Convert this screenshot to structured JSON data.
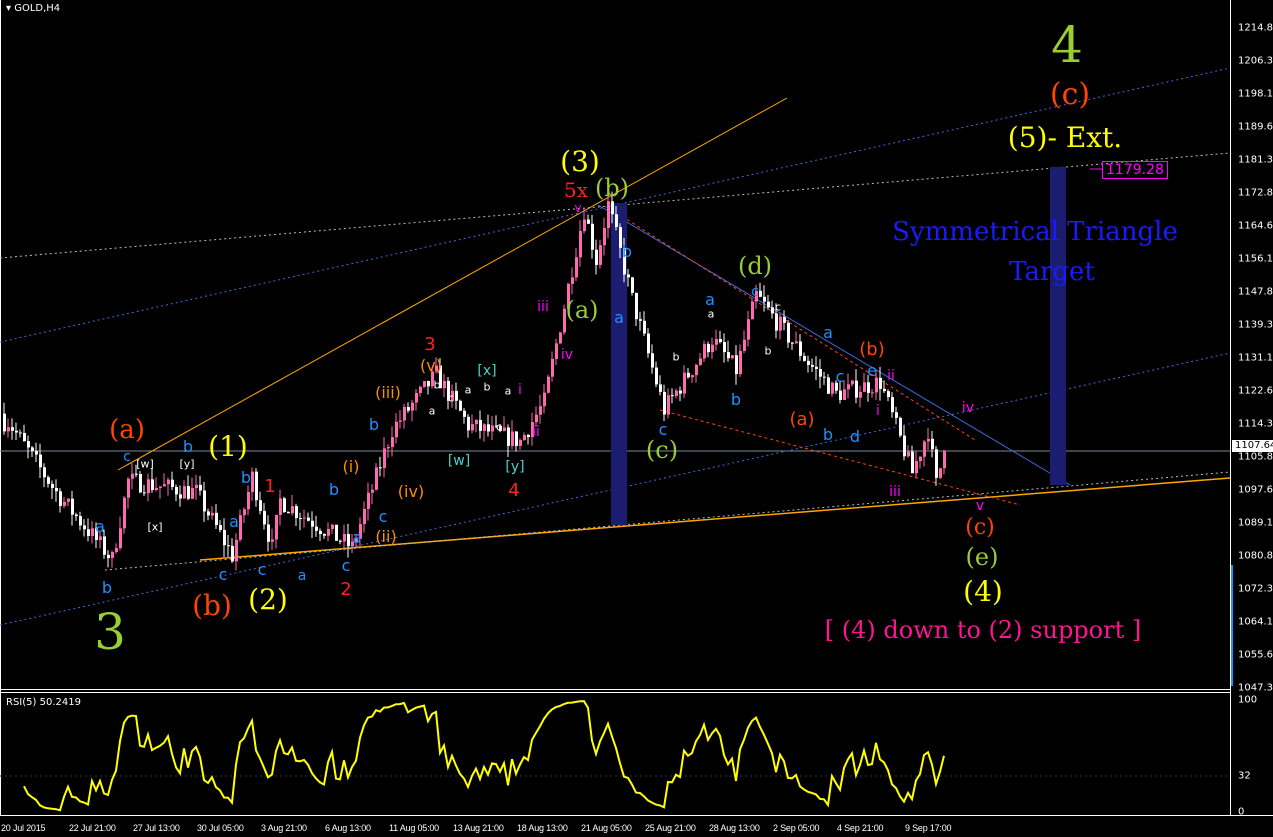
{
  "window": {
    "title": "GOLD,H4",
    "collapse_icon": "triangle-down-icon"
  },
  "price_axis": {
    "ticks": [
      "1214.87",
      "1206.37",
      "1198.12",
      "1189.62",
      "1181.37",
      "1172.87",
      "1164.62",
      "1156.12",
      "1147.87",
      "1139.37",
      "1131.12",
      "1122.62",
      "1114.37",
      "1105.87",
      "1097.62",
      "1089.12",
      "1080.87",
      "1072.37",
      "1064.12",
      "1055.62",
      "1047.37"
    ],
    "current_price": "1107.64"
  },
  "time_axis": {
    "ticks": [
      "20 Jul 2015",
      "22 Jul 21:00",
      "27 Jul 13:00",
      "30 Jul 05:00",
      "3 Aug 21:00",
      "6 Aug 13:00",
      "11 Aug 05:00",
      "13 Aug 21:00",
      "18 Aug 13:00",
      "21 Aug 05:00",
      "25 Aug 21:00",
      "28 Aug 13:00",
      "2 Sep 05:00",
      "4 Sep 21:00",
      "9 Sep 17:00"
    ]
  },
  "indicator": {
    "label": "RSI(5) 50.2419",
    "ticks": [
      "100",
      "32",
      "0"
    ],
    "color": "#ffff00"
  },
  "target": {
    "label": "1179.28",
    "color": "#ff00ff"
  },
  "colors": {
    "bull_candle": "#ff69b4",
    "bear_candle": "#ffffff",
    "background": "#000000",
    "impulse_label": "#ffff00",
    "corrective_label": "#9acd32",
    "triangle_text": "#1a1aff"
  },
  "annotations": [
    {
      "text": "4",
      "color": "#9acd32"
    },
    {
      "text": "(c)",
      "color": "#ff4500"
    },
    {
      "text": "(5)- Ext.",
      "color": "#ffff00"
    },
    {
      "text": "Symmetrical Triangle",
      "color": "#1a1aff"
    },
    {
      "text": "Target",
      "color": "#1a1aff"
    },
    {
      "text": "(3)",
      "color": "#ffff00"
    },
    {
      "text": "5x",
      "color": "#ff2020"
    },
    {
      "text": "(b)",
      "color": "#9acd32"
    },
    {
      "text": "v",
      "color": "#ff00ff"
    },
    {
      "text": "(d)",
      "color": "#9acd32"
    },
    {
      "text": "(a)",
      "color": "#9acd32"
    },
    {
      "text": "(c)",
      "color": "#9acd32"
    },
    {
      "text": "(e)",
      "color": "#9acd32"
    },
    {
      "text": "(4)",
      "color": "#ffff00"
    },
    {
      "text": "(c)",
      "color": "#ff4500"
    },
    {
      "text": "[ (4) down to (2) support ]",
      "color": "#ff1493"
    },
    {
      "text": "(a)",
      "color": "#ff4500"
    },
    {
      "text": "(1)",
      "color": "#ffff00"
    },
    {
      "text": "(b)",
      "color": "#ff4500"
    },
    {
      "text": "(2)",
      "color": "#ffff00"
    },
    {
      "text": "3",
      "color": "#9acd32"
    },
    {
      "text": "1",
      "color": "#ff2020"
    },
    {
      "text": "2",
      "color": "#ff2020"
    },
    {
      "text": "3",
      "color": "#ff2020"
    },
    {
      "text": "4",
      "color": "#ff2020"
    },
    {
      "text": "iii",
      "color": "#ff00ff"
    },
    {
      "text": "iv",
      "color": "#ff00ff"
    },
    {
      "text": "ii",
      "color": "#ff00ff"
    },
    {
      "text": "i",
      "color": "#ff00ff"
    },
    {
      "text": "(iii)",
      "color": "#ff8c00"
    },
    {
      "text": "(iv)",
      "color": "#ff8c00"
    },
    {
      "text": "(ii)",
      "color": "#ff8c00"
    },
    {
      "text": "(i)",
      "color": "#ff8c00"
    },
    {
      "text": "(v)",
      "color": "#ff8c00"
    },
    {
      "text": "(a)",
      "color": "#ff4500"
    },
    {
      "text": "(b)",
      "color": "#ff4500"
    },
    {
      "text": "iii",
      "color": "#ff00ff"
    },
    {
      "text": "iv",
      "color": "#ff00ff"
    },
    {
      "text": "v",
      "color": "#ff00ff"
    },
    {
      "text": "ii",
      "color": "#ff00ff"
    },
    {
      "text": "i",
      "color": "#ff00ff"
    },
    {
      "text": "e",
      "color": "#1e90ff"
    },
    {
      "text": "d",
      "color": "#1e90ff"
    },
    {
      "text": "c",
      "color": "#1e90ff"
    },
    {
      "text": "b",
      "color": "#1e90ff"
    },
    {
      "text": "a",
      "color": "#1e90ff"
    },
    {
      "text": "c",
      "color": "#1e90ff"
    },
    {
      "text": "a",
      "color": "#1e90ff"
    },
    {
      "text": "b",
      "color": "#1e90ff"
    },
    {
      "text": "b",
      "color": "#1e90ff"
    },
    {
      "text": "a",
      "color": "#1e90ff"
    },
    {
      "text": "c",
      "color": "#1e90ff"
    },
    {
      "text": "[x]",
      "color": "#48d1cc"
    },
    {
      "text": "[w]",
      "color": "#48d1cc"
    },
    {
      "text": "[y]",
      "color": "#48d1cc"
    },
    {
      "text": "c",
      "color": "#1e90ff"
    },
    {
      "text": "b",
      "color": "#1e90ff"
    },
    {
      "text": "a",
      "color": "#1e90ff"
    },
    {
      "text": "b",
      "color": "#1e90ff"
    },
    {
      "text": "a",
      "color": "#1e90ff"
    },
    {
      "text": "b",
      "color": "#1e90ff"
    },
    {
      "text": "c",
      "color": "#1e90ff"
    },
    {
      "text": "c",
      "color": "#1e90ff"
    },
    {
      "text": "a",
      "color": "#1e90ff"
    },
    {
      "text": "b",
      "color": "#1e90ff"
    },
    {
      "text": "c",
      "color": "#1e90ff"
    },
    {
      "text": "b",
      "color": "#1e90ff"
    },
    {
      "text": "a",
      "color": "#1e90ff"
    },
    {
      "text": "c",
      "color": "#1e90ff"
    },
    {
      "text": "[w]",
      "color": "#ffffff"
    },
    {
      "text": "[y]",
      "color": "#ffffff"
    },
    {
      "text": "[x]",
      "color": "#ffffff"
    },
    {
      "text": "a",
      "color": "#ffffff"
    },
    {
      "text": "b",
      "color": "#ffffff"
    },
    {
      "text": "c",
      "color": "#ffffff"
    },
    {
      "text": "a",
      "color": "#ffffff"
    },
    {
      "text": "b",
      "color": "#ffffff"
    },
    {
      "text": "c",
      "color": "#ffffff"
    },
    {
      "text": "a",
      "color": "#ffffff"
    },
    {
      "text": "b",
      "color": "#ffffff"
    },
    {
      "text": "a",
      "color": "#ffffff"
    },
    {
      "text": "b",
      "color": "#ffffff"
    },
    {
      "text": "c",
      "color": "#ffffff"
    }
  ],
  "chart_data": {
    "type": "candlestick",
    "symbol": "GOLD",
    "timeframe": "H4",
    "ylim": [
      1047.37,
      1214.87
    ],
    "price_path": [
      {
        "time": "20 Jul 04:00",
        "price": 1115
      },
      {
        "time": "22 Jul 05:00",
        "price": 1097
      },
      {
        "time": "24 Jul 13:00",
        "price": 1080
      },
      {
        "time": "27 Jul 05:00",
        "price": 1100
      },
      {
        "time": "30 Jul 01:00",
        "price": 1097
      },
      {
        "time": "31 Jul 13:00",
        "price": 1081
      },
      {
        "time": "3 Aug 09:00",
        "price": 1101
      },
      {
        "time": "4 Aug 05:00",
        "price": 1083
      },
      {
        "time": "4 Aug 13:00",
        "price": 1095
      },
      {
        "time": "7 Aug 01:00",
        "price": 1085
      },
      {
        "time": "7 Aug 13:00",
        "price": 1083
      },
      {
        "time": "11 Aug 05:00",
        "price": 1113
      },
      {
        "time": "13 Aug 01:00",
        "price": 1127
      },
      {
        "time": "14 Aug 09:00",
        "price": 1114
      },
      {
        "time": "18 Aug 13:00",
        "price": 1110
      },
      {
        "time": "19 Aug 13:00",
        "price": 1120
      },
      {
        "time": "21 Aug 05:00",
        "price": 1168.7
      },
      {
        "time": "21 Aug 17:00",
        "price": 1156
      },
      {
        "time": "24 Aug 05:00",
        "price": 1170
      },
      {
        "time": "25 Aug 05:00",
        "price": 1146
      },
      {
        "time": "26 Aug 13:00",
        "price": 1118
      },
      {
        "time": "28 Aug 13:00",
        "price": 1136
      },
      {
        "time": "31 Aug 13:00",
        "price": 1128
      },
      {
        "time": "1 Sep 09:00",
        "price": 1147
      },
      {
        "time": "3 Sep 13:00",
        "price": 1130
      },
      {
        "time": "4 Sep 17:00",
        "price": 1122
      },
      {
        "time": "8 Sep 13:00",
        "price": 1125
      },
      {
        "time": "9 Sep 21:00",
        "price": 1102
      },
      {
        "time": "10 Sep 13:00",
        "price": 1113
      },
      {
        "time": "10 Sep 21:00",
        "price": 1099
      },
      {
        "time": "11 Sep 05:00",
        "price": 1107.64
      }
    ],
    "target_price": 1179.28,
    "current_price": 1107.64,
    "rsi": {
      "period": 5,
      "last": 50.2419,
      "ylim": [
        0,
        100
      ],
      "level": 32
    }
  }
}
